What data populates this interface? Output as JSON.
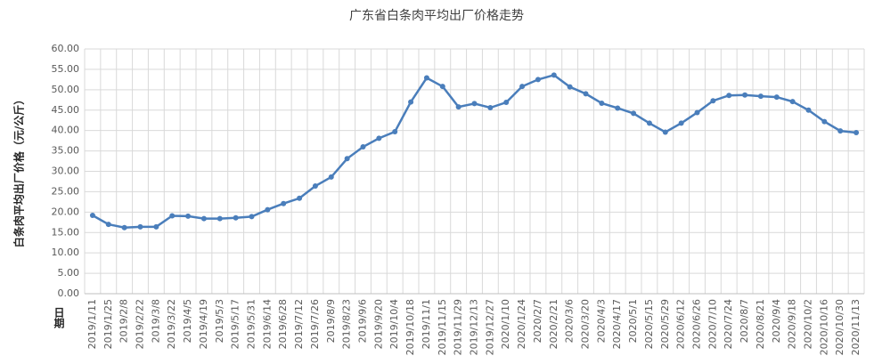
{
  "chart_data": {
    "type": "line",
    "title": "广东省白条肉平均出厂价格走势",
    "y_label": "白条肉平均出厂价格（元/公斤）",
    "x_label": "日期",
    "categories": [
      "2019/1/11",
      "2019/1/25",
      "2019/2/8",
      "2019/2/22",
      "2019/3/8",
      "2019/3/22",
      "2019/4/5",
      "2019/4/19",
      "2019/5/3",
      "2019/5/17",
      "2019/5/31",
      "2019/6/14",
      "2019/6/28",
      "2019/7/12",
      "2019/7/26",
      "2019/8/9",
      "2019/8/23",
      "2019/9/6",
      "2019/9/20",
      "2019/10/4",
      "2019/10/18",
      "2019/11/1",
      "2019/11/15",
      "2019/11/29",
      "2019/12/13",
      "2019/12/27",
      "2020/1/10",
      "2020/1/24",
      "2020/2/7",
      "2020/2/21",
      "2020/3/6",
      "2020/3/20",
      "2020/4/3",
      "2020/4/17",
      "2020/5/1",
      "2020/5/15",
      "2020/5/29",
      "2020/6/12",
      "2020/6/26",
      "2020/7/10",
      "2020/7/24",
      "2020/8/7",
      "2020/8/21",
      "2020/9/4",
      "2020/9/18",
      "2020/10/2",
      "2020/10/16",
      "2020/10/30",
      "2020/11/13"
    ],
    "series": [
      {
        "color": "#4a7ebb",
        "values": [
          19.2,
          17.0,
          16.2,
          16.4,
          16.4,
          19.1,
          19.0,
          18.4,
          18.4,
          18.6,
          18.9,
          20.6,
          22.1,
          23.4,
          26.4,
          28.6,
          33.1,
          36.0,
          38.1,
          39.7,
          47.0,
          52.9,
          50.8,
          45.8,
          46.6,
          45.6,
          46.9,
          50.8,
          52.5,
          53.6,
          50.7,
          49.0,
          46.7,
          45.5,
          44.2,
          41.8,
          39.6,
          41.8,
          44.4,
          47.3,
          48.6,
          48.7,
          48.4,
          48.2,
          47.1,
          45.0,
          42.2,
          39.9,
          39.5
        ]
      }
    ],
    "ylim": [
      0,
      60
    ],
    "yticks": [
      {
        "value": 0,
        "label": "0.00"
      },
      {
        "value": 5,
        "label": "5.00"
      },
      {
        "value": 10,
        "label": "10.00"
      },
      {
        "value": 15,
        "label": "15.00"
      },
      {
        "value": 20,
        "label": "20.00"
      },
      {
        "value": 25,
        "label": "25.00"
      },
      {
        "value": 30,
        "label": "30.00"
      },
      {
        "value": 35,
        "label": "35.00"
      },
      {
        "value": 40,
        "label": "40.00"
      },
      {
        "value": 45,
        "label": "45.00"
      },
      {
        "value": 50,
        "label": "50.00"
      },
      {
        "value": 55,
        "label": "55.00"
      },
      {
        "value": 60,
        "label": "60.00"
      }
    ],
    "grid": true
  }
}
